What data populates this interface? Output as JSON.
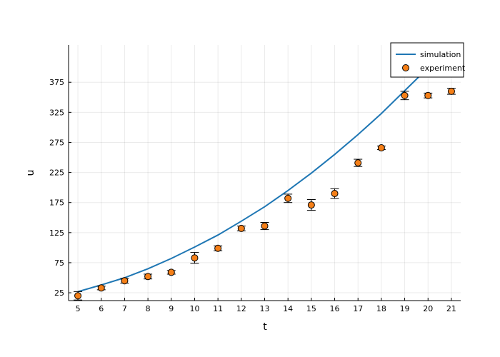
{
  "chart_data": {
    "type": "scatter",
    "xlabel": "t",
    "ylabel": "u",
    "xlim": [
      4.6,
      21.4
    ],
    "ylim": [
      12,
      437
    ],
    "xticks": [
      5,
      6,
      7,
      8,
      9,
      10,
      11,
      12,
      13,
      14,
      15,
      16,
      17,
      18,
      19,
      20,
      21
    ],
    "yticks": [
      25,
      75,
      125,
      175,
      225,
      275,
      325,
      375
    ],
    "grid": true,
    "legend": "top-right",
    "series": [
      {
        "name": "simulation",
        "type": "line",
        "color": "#1f77b4",
        "x": [
          5,
          6,
          7,
          8,
          9,
          10,
          11,
          12,
          13,
          14,
          15,
          16,
          17,
          18,
          19,
          20,
          21
        ],
        "y": [
          27,
          38,
          50,
          65,
          82,
          101,
          121,
          144,
          168,
          195,
          224,
          255,
          288,
          323,
          361,
          399,
          439
        ]
      },
      {
        "name": "experiment",
        "type": "scatter",
        "color": "#f57f17",
        "x": [
          5,
          6,
          7,
          8,
          9,
          10,
          11,
          12,
          13,
          14,
          15,
          16,
          17,
          18,
          19,
          20,
          21
        ],
        "y": [
          20,
          33,
          45,
          52,
          59,
          83,
          99,
          132,
          136,
          182,
          171,
          190,
          241,
          266,
          353,
          353,
          360
        ],
        "error": [
          7,
          3,
          4,
          4,
          3,
          9,
          4,
          4,
          6,
          7,
          9,
          8,
          6,
          3,
          7,
          4,
          5
        ]
      }
    ]
  }
}
